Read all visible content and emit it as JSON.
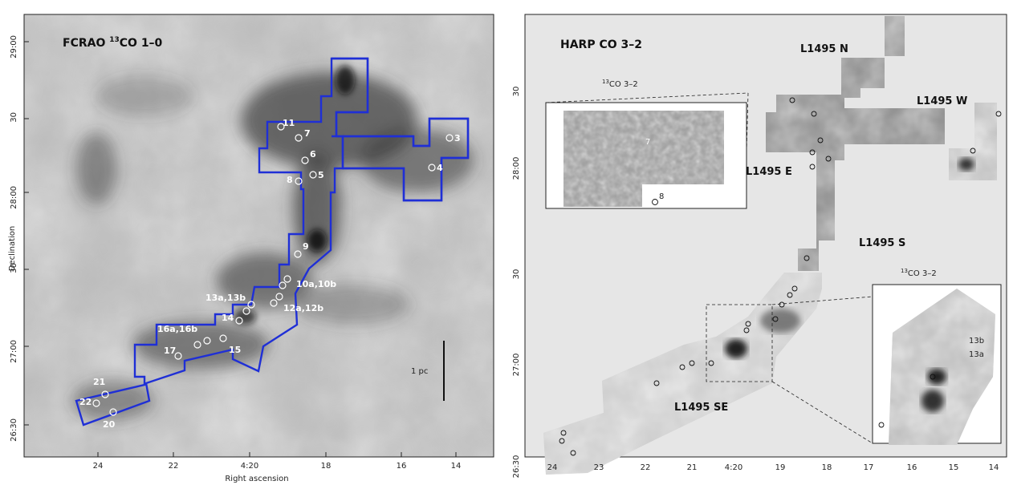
{
  "left_panel": {
    "title": "FCRAO ",
    "title_sup": "13",
    "title_rest": "CO 1–0",
    "ylabel": "Declination",
    "xlabel": "Right ascension",
    "y_ticks": [
      "29:00",
      "30",
      "28:00",
      "30",
      "27:00",
      "26:30"
    ],
    "x_ticks": [
      "24",
      "22",
      "4:20",
      "18",
      "16",
      "14"
    ],
    "scale_label": "1 pc",
    "source_labels": [
      "3",
      "4",
      "5",
      "6",
      "7",
      "8",
      "9",
      "10a,10b",
      "11",
      "12a,12b",
      "13a,13b",
      "14",
      "15",
      "16a,16b",
      "17",
      "20",
      "21",
      "22"
    ]
  },
  "right_panel": {
    "title": "HARP CO 3–2",
    "y_ticks": [
      "30",
      "28:00",
      "30",
      "27:00",
      "26:30"
    ],
    "x_ticks": [
      "24",
      "23",
      "22",
      "21",
      "4:20",
      "19",
      "18",
      "17",
      "16",
      "15",
      "14"
    ],
    "region_labels": [
      "L1495 N",
      "L1495 W",
      "L1495 E",
      "L1495 S",
      "L1495 SE"
    ],
    "inset_top_label_sup": "13",
    "inset_top_label": "CO 3–2",
    "inset_bottom_label_sup": "13",
    "inset_bottom_label": "CO 3–2",
    "inset_top_sources": [
      "7",
      "8"
    ],
    "inset_bottom_sources": [
      "13b",
      "13a"
    ]
  },
  "colors": {
    "outline": "#1f2fd6",
    "map_bg": "#b9b9b9",
    "panel_bg": "#e6e6e6"
  }
}
